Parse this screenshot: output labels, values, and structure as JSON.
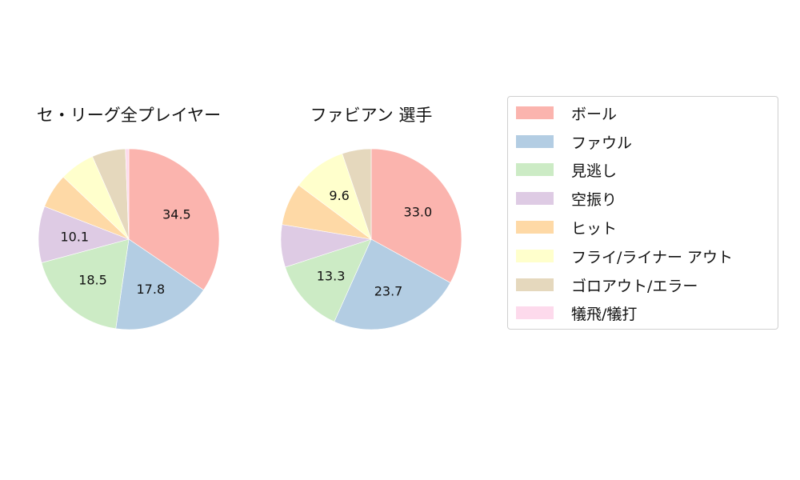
{
  "chart_data": [
    {
      "type": "pie",
      "title": "セ・リーグ全プレイヤー",
      "categories": [
        "ボール",
        "ファウル",
        "見逃し",
        "空振り",
        "ヒット",
        "フライ/ライナー アウト",
        "ゴロアウト/エラー",
        "犠飛/犠打"
      ],
      "values": [
        34.5,
        17.8,
        18.5,
        10.1,
        6.2,
        6.3,
        6.0,
        0.6
      ],
      "labels_shown": [
        "34.5",
        "17.8",
        "18.5",
        "10.1",
        "",
        "",
        "",
        ""
      ],
      "start_angle": 90,
      "direction": "clockwise"
    },
    {
      "type": "pie",
      "title": "ファビアン  選手",
      "categories": [
        "ボール",
        "ファウル",
        "見逃し",
        "空振り",
        "ヒット",
        "フライ/ライナー アウト",
        "ゴロアウト/エラー",
        "犠飛/犠打"
      ],
      "values": [
        33.0,
        23.7,
        13.3,
        7.6,
        7.6,
        9.6,
        5.2,
        0.0
      ],
      "labels_shown": [
        "33.0",
        "23.7",
        "13.3",
        "",
        "",
        "9.6",
        "",
        ""
      ],
      "start_angle": 90,
      "direction": "clockwise"
    }
  ],
  "colors": [
    "#fbb4ae",
    "#b3cde3",
    "#ccebc5",
    "#decbe4",
    "#fed9a6",
    "#ffffcc",
    "#e5d8bd",
    "#fddaec"
  ],
  "legend": {
    "items": [
      {
        "label": "ボール",
        "color": "#fbb4ae"
      },
      {
        "label": "ファウル",
        "color": "#b3cde3"
      },
      {
        "label": "見逃し",
        "color": "#ccebc5"
      },
      {
        "label": "空振り",
        "color": "#decbe4"
      },
      {
        "label": "ヒット",
        "color": "#fed9a6"
      },
      {
        "label": "フライ/ライナー アウト",
        "color": "#ffffcc"
      },
      {
        "label": "ゴロアウト/エラー",
        "color": "#e5d8bd"
      },
      {
        "label": "犠飛/犠打",
        "color": "#fddaec"
      }
    ]
  }
}
